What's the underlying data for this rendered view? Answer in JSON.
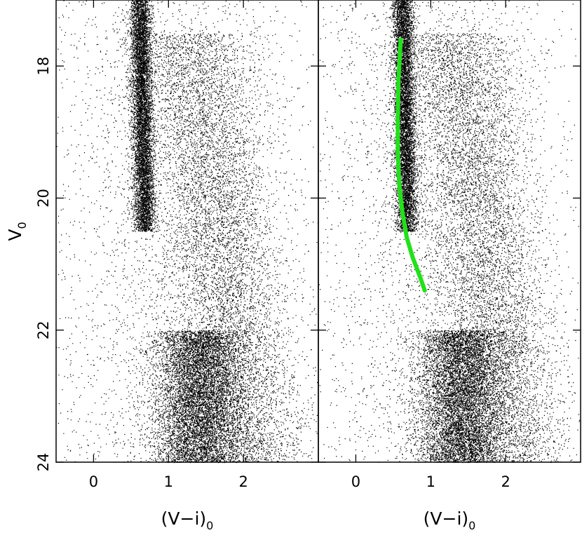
{
  "chart_data": [
    {
      "type": "scatter",
      "panel": "left",
      "title": "",
      "xlabel": "(V−i)",
      "xlabel_subscript": "0",
      "ylabel": "V",
      "ylabel_subscript": "0",
      "xlim": [
        -0.5,
        3.0
      ],
      "ylim": [
        24.0,
        17.0
      ],
      "y_inverted": true,
      "x_ticks": [
        0,
        1,
        2
      ],
      "x_tick_labels": [
        "0",
        "1",
        "2"
      ],
      "y_ticks": [
        18,
        20,
        22,
        24
      ],
      "y_tick_labels": [
        "18",
        "20",
        "22",
        "24"
      ],
      "grid": false,
      "legend": "none",
      "point_color": "#000000",
      "density_components": [
        {
          "name": "",
          "x_center_top": 0.62,
          "x_center_bottom": 0.68,
          "y_range": [
            17.0,
            20.5
          ],
          "x_spread": 0.07,
          "weight": 0.28
        },
        {
          "name": "",
          "x_center_top": 1.3,
          "x_center_bottom": 2.1,
          "y_range": [
            17.5,
            24.0
          ],
          "x_spread": 0.4,
          "weight": 0.3
        },
        {
          "name": "",
          "x_center_top": 1.4,
          "x_center_bottom": 1.4,
          "y_range": [
            22.0,
            24.0
          ],
          "x_spread": 0.3,
          "weight": 0.3
        },
        {
          "name": "",
          "x_center_top": 1.0,
          "x_center_bottom": 1.0,
          "y_range": [
            17.0,
            24.0
          ],
          "x_spread": 0.9,
          "weight": 0.12
        }
      ]
    },
    {
      "type": "scatter",
      "panel": "right",
      "title": "",
      "xlabel": "(V−i)",
      "xlabel_subscript": "0",
      "ylabel": "",
      "xlim": [
        -0.5,
        3.0
      ],
      "ylim": [
        24.0,
        17.0
      ],
      "y_inverted": true,
      "x_ticks": [
        0,
        1,
        2
      ],
      "x_tick_labels": [
        "0",
        "1",
        "2"
      ],
      "y_ticks": [
        18,
        20,
        22,
        24
      ],
      "y_tick_labels": [],
      "grid": false,
      "legend": "none",
      "point_color": "#000000",
      "density_components": [
        {
          "name": "",
          "x_center_top": 0.62,
          "x_center_bottom": 0.68,
          "y_range": [
            17.0,
            20.5
          ],
          "x_spread": 0.07,
          "weight": 0.28
        },
        {
          "name": "",
          "x_center_top": 1.3,
          "x_center_bottom": 2.1,
          "y_range": [
            17.5,
            24.0
          ],
          "x_spread": 0.4,
          "weight": 0.3
        },
        {
          "name": "",
          "x_center_top": 1.4,
          "x_center_bottom": 1.4,
          "y_range": [
            22.0,
            24.0
          ],
          "x_spread": 0.3,
          "weight": 0.3
        },
        {
          "name": "",
          "x_center_top": 1.0,
          "x_center_bottom": 1.0,
          "y_range": [
            17.0,
            24.0
          ],
          "x_spread": 0.9,
          "weight": 0.12
        }
      ],
      "overlay_line": {
        "color": "#22e01a",
        "x": [
          0.6,
          0.57,
          0.56,
          0.56,
          0.58,
          0.62,
          0.68,
          0.76,
          0.86,
          0.92
        ],
        "y": [
          17.6,
          18.2,
          18.8,
          19.3,
          19.8,
          20.2,
          20.6,
          20.9,
          21.2,
          21.4
        ]
      }
    }
  ]
}
